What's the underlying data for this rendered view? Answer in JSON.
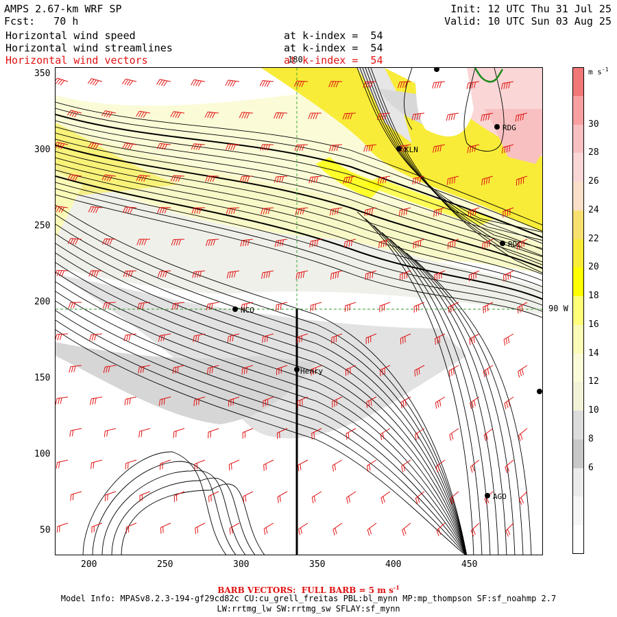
{
  "header": {
    "model": "AMPS 2.67-km WRF SP",
    "fcst": "Fcst:   70 h",
    "init": "Init: 12 UTC Thu 31 Jul 25",
    "valid": "Valid: 10 UTC Sun 03 Aug 25"
  },
  "fields": [
    {
      "label": "Horizontal wind speed",
      "level": "at k-index =  54",
      "color": "#000000"
    },
    {
      "label": "Horizontal wind streamlines",
      "level": "at k-index =  54",
      "color": "#000000"
    },
    {
      "label": "Horizontal wind vectors",
      "level": "at k-index =  54",
      "color": "#e01010"
    }
  ],
  "map": {
    "x_ticks": [
      "200",
      "250",
      "300",
      "350",
      "400",
      "450"
    ],
    "y_ticks": [
      "50",
      "100",
      "150",
      "200",
      "250",
      "300",
      "350"
    ],
    "meridian_label": "180",
    "parallel_label": "90 W",
    "stations": [
      {
        "name": "KLN"
      },
      {
        "name": "RDG"
      },
      {
        "name": "RDC"
      },
      {
        "name": "NCO"
      },
      {
        "name": "Henry"
      },
      {
        "name": "AGO"
      },
      {
        "name": ""
      },
      {
        "name": ""
      }
    ]
  },
  "colorbar": {
    "units": "m s",
    "units_exp": "-1",
    "labels": [
      "30",
      "28",
      "26",
      "24",
      "22",
      "20",
      "18",
      "16",
      "14",
      "12",
      "10",
      "8",
      "6"
    ],
    "colors": [
      "#f07878",
      "#f8a0a0",
      "#f8c0c0",
      "#fad6d6",
      "#fae0c8",
      "#f8e070",
      "#f8ec38",
      "#ffff00",
      "#ffff7a",
      "#fbfbb8",
      "#fbfbd8",
      "#f2f2d8",
      "#dcdcdc",
      "#c8c8c8",
      "#ebebeb",
      "#f6f6f6",
      "#ffffff"
    ]
  },
  "footer": {
    "barb_note": "BARB VECTORS:  FULL BARB = 5 m s",
    "barb_exp": "-1",
    "model_info": "Model Info: MPASv8.2.3-194-gf29cd82c CU:cu_grell_freitas PBL:bl_mynn MP:mp_thompson SF:sf_noahmp 2.7",
    "physics": "LW:rrtmg_lw SW:rrtmg_sw SFLAY:sf_mynn"
  },
  "style": {
    "vector_color": "#e01010",
    "guide_color": "#2e9e2e",
    "coast_color": "#1a8a1a"
  }
}
